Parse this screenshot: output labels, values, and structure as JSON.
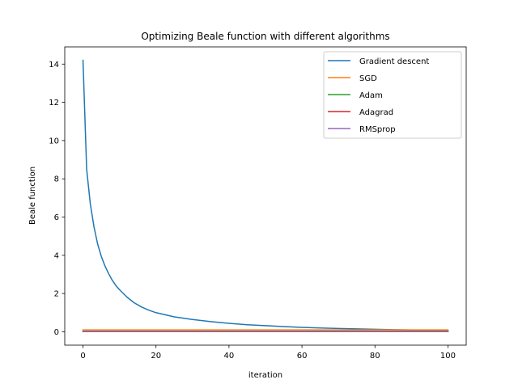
{
  "chart_data": {
    "type": "line",
    "title": "Optimizing Beale function with different algorithms",
    "xlabel": "iteration",
    "ylabel": "Beale function",
    "xlim": [
      -5,
      105
    ],
    "ylim": [
      -0.7,
      14.9
    ],
    "xticks": [
      0,
      20,
      40,
      60,
      80,
      100
    ],
    "yticks": [
      0,
      2,
      4,
      6,
      8,
      10,
      12,
      14
    ],
    "grid": false,
    "legend_position": "top-right",
    "x": [
      0,
      1,
      2,
      3,
      4,
      5,
      6,
      7,
      8,
      9,
      10,
      12,
      14,
      16,
      18,
      20,
      25,
      30,
      35,
      40,
      45,
      50,
      55,
      60,
      65,
      70,
      75,
      80,
      85,
      90,
      95,
      100
    ],
    "series": [
      {
        "name": "Gradient descent",
        "color": "#1f77b4",
        "values": [
          14.2,
          8.5,
          6.7,
          5.5,
          4.6,
          3.95,
          3.45,
          3.05,
          2.7,
          2.42,
          2.2,
          1.82,
          1.52,
          1.3,
          1.13,
          1.0,
          0.78,
          0.64,
          0.53,
          0.44,
          0.37,
          0.32,
          0.27,
          0.23,
          0.2,
          0.17,
          0.15,
          0.13,
          0.11,
          0.095,
          0.085,
          0.08
        ]
      },
      {
        "name": "SGD",
        "color": "#ff7f0e",
        "values": "flat:0.1"
      },
      {
        "name": "Adam",
        "color": "#2ca02c",
        "values": "flat:0.03"
      },
      {
        "name": "Adagrad",
        "color": "#d62728",
        "values": "flat:0.02"
      },
      {
        "name": "RMSprop",
        "color": "#9467bd",
        "values": "flat:0.01"
      }
    ]
  }
}
